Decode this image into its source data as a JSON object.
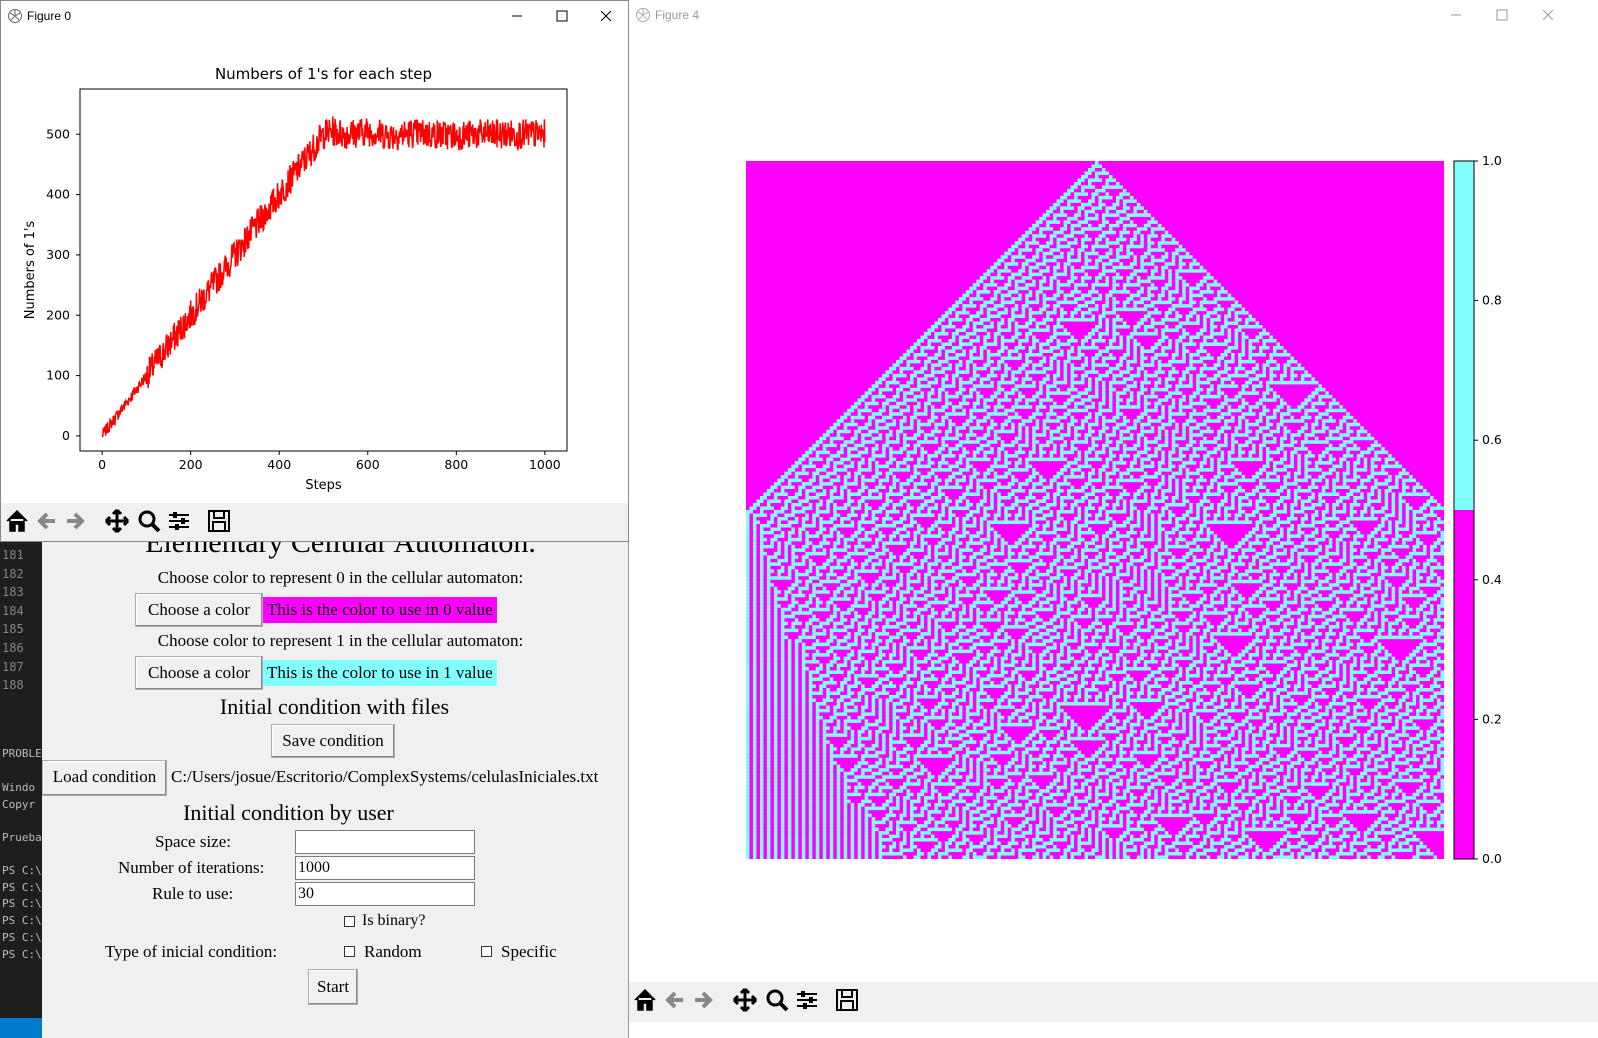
{
  "terminal": {
    "line_numbers": [
      "181",
      "182",
      "183",
      "184",
      "185",
      "186",
      "187",
      "188"
    ],
    "problems_label": "PROBLE",
    "lines": [
      "Windo",
      "Copyr",
      "",
      "Prueba",
      "",
      "PS C:\\",
      "PS C:\\",
      "PS C:\\",
      "PS C:\\",
      "PS C:\\",
      "PS C:\\"
    ]
  },
  "app": {
    "title": "Elementary Cellular Automaton.",
    "choose0_label": "Choose color to represent 0 in the cellular automaton:",
    "choose_color_btn": "Choose a color",
    "swatch0_text": "This is the color to use in 0 value",
    "choose1_label": "Choose color to represent 1 in the cellular automaton:",
    "swatch1_text": "This is the color to use in 1 value",
    "files_heading": "Initial condition with files",
    "save_btn": "Save condition",
    "load_btn": "Load condition",
    "file_path": "C:/Users/josue/Escritorio/ComplexSystems/celulasIniciales.txt",
    "user_heading": "Initial condition by user",
    "space_label": "Space size:",
    "space_value": "",
    "iter_label": "Number of iterations:",
    "iter_value": "1000",
    "rule_label": "Rule to use:",
    "rule_value": "30",
    "binary_label": "Is binary?",
    "type_label": "Type of inicial condition:",
    "random_label": "Random",
    "specific_label": "Specific",
    "start_btn": "Start",
    "color0": "#ff00ff",
    "color1": "#80ffff"
  },
  "figure0": {
    "window_title": "Figure 0",
    "toolbar_icons": [
      "home-icon",
      "back-arrow-icon",
      "forward-arrow-icon",
      "pan-icon",
      "zoom-icon",
      "configure-subplots-icon",
      "save-icon"
    ]
  },
  "figure4": {
    "window_title": "Figure 4",
    "toolbar_icons": [
      "home-icon",
      "back-arrow-icon",
      "forward-arrow-icon",
      "pan-icon",
      "zoom-icon",
      "configure-subplots-icon",
      "save-icon"
    ],
    "colorbar_ticks": [
      "1.0",
      "0.8",
      "0.6",
      "0.4",
      "0.2",
      "0.0"
    ]
  },
  "chart_data": [
    {
      "type": "line",
      "title": "Numbers of 1's for each step",
      "xlabel": "Steps",
      "ylabel": "Numbers of 1's",
      "xlim": [
        -50,
        1050
      ],
      "ylim": [
        -25,
        575
      ],
      "xticks": [
        0,
        200,
        400,
        600,
        800,
        1000
      ],
      "yticks": [
        0,
        100,
        200,
        300,
        400,
        500
      ],
      "series": [
        {
          "color": "#ff0000",
          "x": [
            0,
            50,
            100,
            150,
            200,
            250,
            300,
            350,
            400,
            450,
            500,
            520,
            550,
            600,
            650,
            700,
            750,
            800,
            850,
            900,
            950,
            1000
          ],
          "y": [
            1,
            50,
            100,
            150,
            200,
            250,
            300,
            350,
            400,
            450,
            500,
            505,
            500,
            505,
            498,
            502,
            500,
            498,
            500,
            500,
            500,
            500
          ],
          "noise_amplitude": 25
        }
      ]
    },
    {
      "type": "heatmap",
      "rule": 30,
      "iterations": 1000,
      "colorbar_range": [
        0.0,
        1.0
      ],
      "colors": [
        "#ff00ff",
        "#80ffff"
      ]
    }
  ]
}
